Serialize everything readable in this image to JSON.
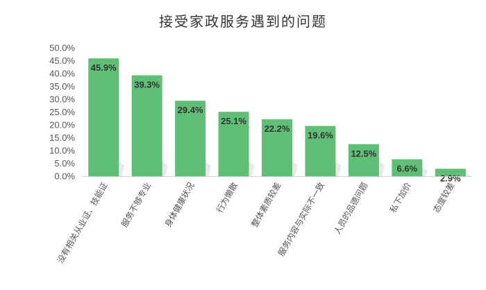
{
  "colors": {
    "bar": "#5fbf75",
    "shadow": "#cfcfcf",
    "axis": "#d0d0d0",
    "text": "#555555",
    "title": "#333333"
  },
  "chart_data": {
    "type": "bar",
    "title": "接受家政服务遇到的问题",
    "xlabel": "",
    "ylabel": "",
    "ylim": [
      0,
      50
    ],
    "yticks": [
      "0.0%",
      "5.0%",
      "10.0%",
      "15.0%",
      "20.0%",
      "25.0%",
      "30.0%",
      "35.0%",
      "40.0%",
      "45.0%",
      "50.0%"
    ],
    "grid": false,
    "legend": "none",
    "categories": [
      "没有相关从业证、技能证",
      "服务不够专业",
      "身体健康状况",
      "行为懒散",
      "整体素质较差",
      "服务内容与实际不一致",
      "人员的品德问题",
      "私下加价",
      "态度较差"
    ],
    "values": [
      45.9,
      39.3,
      29.4,
      25.1,
      22.2,
      19.6,
      12.5,
      6.6,
      2.9
    ],
    "value_labels": [
      "45.9%",
      "39.3%",
      "29.4%",
      "25.1%",
      "22.2%",
      "19.6%",
      "12.5%",
      "6.6%",
      "2.9%"
    ]
  }
}
